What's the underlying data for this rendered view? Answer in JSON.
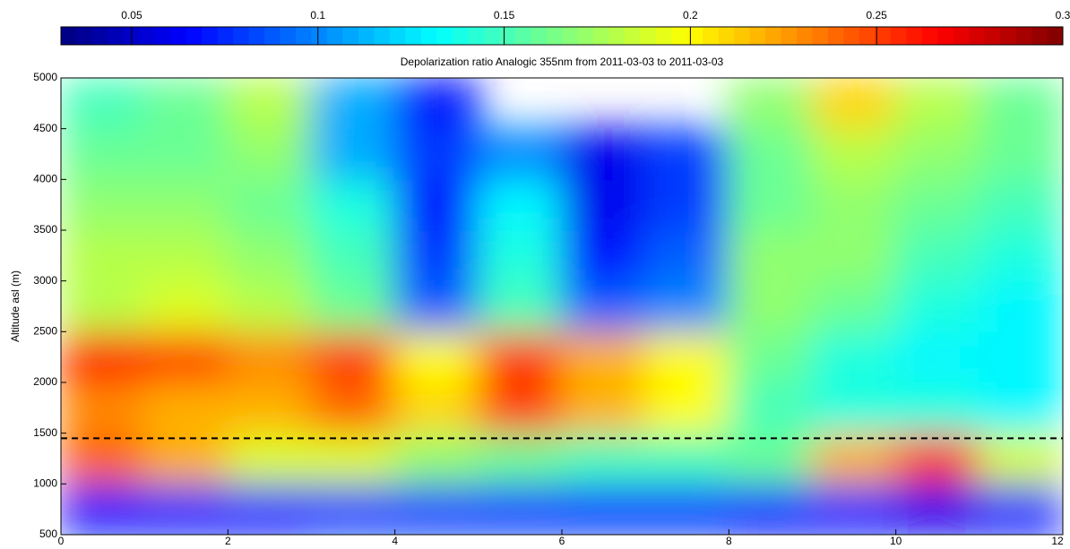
{
  "chart_data": {
    "type": "heatmap",
    "title": "Depolarization ratio Analogic 355nm from 2011-03-03 to 2011-03-03",
    "ylabel": "Altitude asl (m)",
    "colormap": "jet",
    "clim": [
      0.031,
      0.3
    ],
    "cticks": [
      0.05,
      0.1,
      0.15,
      0.2,
      0.25,
      0.3
    ],
    "xbins": [
      0,
      1,
      2,
      3,
      4,
      5,
      6,
      7,
      8,
      9,
      10,
      11,
      12
    ],
    "ybins": [
      500,
      1000,
      1500,
      2000,
      2500,
      3000,
      3500,
      4000,
      4500,
      5000
    ],
    "values": [
      [
        0.07,
        0.07,
        0.07,
        0.08,
        0.08,
        0.08,
        0.08,
        0.08,
        0.07,
        0.07,
        0.06,
        0.07
      ],
      [
        0.24,
        0.22,
        0.19,
        0.19,
        0.17,
        0.16,
        0.15,
        0.15,
        0.16,
        0.22,
        0.25,
        0.19
      ],
      [
        0.23,
        0.22,
        0.22,
        0.24,
        0.21,
        0.25,
        0.22,
        0.2,
        0.15,
        0.14,
        0.14,
        0.13
      ],
      [
        0.26,
        0.25,
        0.23,
        0.25,
        0.2,
        0.25,
        0.22,
        0.2,
        0.16,
        0.14,
        0.13,
        0.13
      ],
      [
        0.18,
        0.19,
        0.18,
        0.16,
        0.09,
        0.15,
        0.09,
        0.1,
        0.17,
        0.16,
        0.14,
        0.13
      ],
      [
        0.18,
        0.18,
        0.17,
        0.15,
        0.08,
        0.14,
        0.07,
        0.09,
        0.17,
        0.17,
        0.15,
        0.14
      ],
      [
        0.17,
        0.17,
        0.16,
        0.14,
        0.07,
        0.13,
        0.06,
        0.08,
        0.16,
        0.17,
        0.16,
        0.15
      ],
      [
        0.16,
        0.16,
        0.17,
        0.11,
        0.08,
        0.1,
        0.06,
        0.08,
        0.16,
        0.18,
        0.17,
        0.16
      ],
      [
        0.15,
        0.16,
        0.18,
        0.11,
        0.07,
        null,
        null,
        null,
        0.17,
        0.21,
        0.18,
        0.16
      ]
    ],
    "xlim": [
      0,
      12
    ],
    "xticks": [
      0,
      2,
      4,
      6,
      8,
      10,
      12
    ],
    "ylim": [
      500,
      5000
    ],
    "yticks": [
      500,
      1000,
      1500,
      2000,
      2500,
      3000,
      3500,
      4000,
      4500,
      5000
    ],
    "hline": 1450
  }
}
